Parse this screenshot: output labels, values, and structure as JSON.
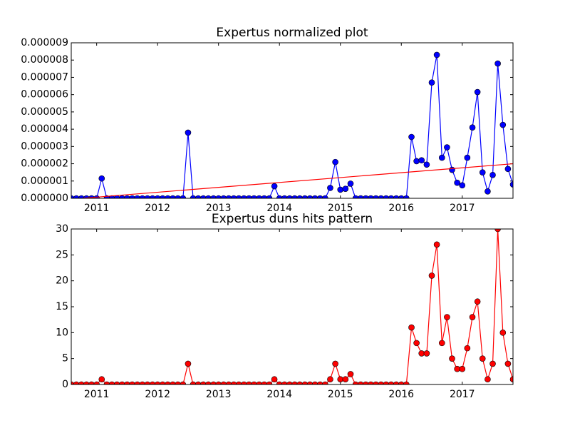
{
  "chart_data": [
    {
      "type": "line",
      "title": "Expertus normalized plot",
      "x": [
        2010.583,
        2010.667,
        2010.75,
        2010.833,
        2010.917,
        2011,
        2011.083,
        2011.167,
        2011.25,
        2011.333,
        2011.417,
        2011.5,
        2011.583,
        2011.667,
        2011.75,
        2011.833,
        2011.917,
        2012,
        2012.083,
        2012.167,
        2012.25,
        2012.333,
        2012.417,
        2012.5,
        2012.583,
        2012.667,
        2012.75,
        2012.833,
        2012.917,
        2013,
        2013.083,
        2013.167,
        2013.25,
        2013.333,
        2013.417,
        2013.5,
        2013.583,
        2013.667,
        2013.75,
        2013.833,
        2013.917,
        2014,
        2014.083,
        2014.167,
        2014.25,
        2014.333,
        2014.417,
        2014.5,
        2014.583,
        2014.667,
        2014.75,
        2014.833,
        2014.917,
        2015,
        2015.083,
        2015.167,
        2015.25,
        2015.333,
        2015.417,
        2015.5,
        2015.583,
        2015.667,
        2015.75,
        2015.833,
        2015.917,
        2016,
        2016.083,
        2016.167,
        2016.25,
        2016.333,
        2016.417,
        2016.5,
        2016.583,
        2016.667,
        2016.75,
        2016.833,
        2016.917,
        2017,
        2017.083,
        2017.167,
        2017.25,
        2017.333,
        2017.417,
        2017.5,
        2017.583,
        2017.667,
        2017.75,
        2017.833
      ],
      "series": [
        {
          "color": "#0000ff",
          "marker": true,
          "values": [
            0,
            0,
            0,
            0,
            0,
            0,
            1.15e-06,
            0,
            0,
            0,
            0,
            0,
            0,
            0,
            0,
            0,
            0,
            0,
            0,
            0,
            0,
            0,
            0,
            3.8e-06,
            0,
            0,
            0,
            0,
            0,
            0,
            0,
            0,
            0,
            0,
            0,
            0,
            0,
            0,
            0,
            0,
            7e-07,
            0,
            0,
            0,
            0,
            0,
            0,
            0,
            0,
            0,
            0,
            6e-07,
            2.1e-06,
            5e-07,
            5.5e-07,
            8.5e-07,
            0,
            0,
            0,
            0,
            0,
            0,
            0,
            0,
            0,
            0,
            0,
            3.55e-06,
            2.15e-06,
            2.2e-06,
            1.95e-06,
            6.7e-06,
            8.3e-06,
            2.35e-06,
            2.95e-06,
            1.65e-06,
            9e-07,
            7.5e-07,
            2.35e-06,
            4.1e-06,
            6.15e-06,
            1.5e-06,
            4e-07,
            1.35e-06,
            7.8e-06,
            4.25e-06,
            1.7e-06,
            8e-07
          ]
        },
        {
          "color": "#ff0000",
          "marker": false,
          "x": [
            2010.583,
            2017.833
          ],
          "values": [
            -5e-08,
            2e-06
          ]
        }
      ],
      "xlim": [
        2010.583,
        2017.833
      ],
      "xticks": [
        2011,
        2012,
        2013,
        2014,
        2015,
        2016,
        2017
      ],
      "ylim": [
        0,
        9e-06
      ],
      "yticks": [
        {
          "value": 0,
          "label": "0.000000"
        },
        {
          "value": 1e-06,
          "label": "0.000001"
        },
        {
          "value": 2e-06,
          "label": "0.000002"
        },
        {
          "value": 3e-06,
          "label": "0.000003"
        },
        {
          "value": 4e-06,
          "label": "0.000004"
        },
        {
          "value": 5e-06,
          "label": "0.000005"
        },
        {
          "value": 6e-06,
          "label": "0.000006"
        },
        {
          "value": 7e-06,
          "label": "0.000007"
        },
        {
          "value": 8e-06,
          "label": "0.000008"
        },
        {
          "value": 9e-06,
          "label": "0.000009"
        }
      ]
    },
    {
      "type": "line",
      "title": "Expertus duns hits pattern",
      "x": [
        2010.583,
        2010.667,
        2010.75,
        2010.833,
        2010.917,
        2011,
        2011.083,
        2011.167,
        2011.25,
        2011.333,
        2011.417,
        2011.5,
        2011.583,
        2011.667,
        2011.75,
        2011.833,
        2011.917,
        2012,
        2012.083,
        2012.167,
        2012.25,
        2012.333,
        2012.417,
        2012.5,
        2012.583,
        2012.667,
        2012.75,
        2012.833,
        2012.917,
        2013,
        2013.083,
        2013.167,
        2013.25,
        2013.333,
        2013.417,
        2013.5,
        2013.583,
        2013.667,
        2013.75,
        2013.833,
        2013.917,
        2014,
        2014.083,
        2014.167,
        2014.25,
        2014.333,
        2014.417,
        2014.5,
        2014.583,
        2014.667,
        2014.75,
        2014.833,
        2014.917,
        2015,
        2015.083,
        2015.167,
        2015.25,
        2015.333,
        2015.417,
        2015.5,
        2015.583,
        2015.667,
        2015.75,
        2015.833,
        2015.917,
        2016,
        2016.083,
        2016.167,
        2016.25,
        2016.333,
        2016.417,
        2016.5,
        2016.583,
        2016.667,
        2016.75,
        2016.833,
        2016.917,
        2017,
        2017.083,
        2017.167,
        2017.25,
        2017.333,
        2017.417,
        2017.5,
        2017.583,
        2017.667,
        2017.75,
        2017.833
      ],
      "series": [
        {
          "color": "#ff0000",
          "marker": true,
          "values": [
            0,
            0,
            0,
            0,
            0,
            0,
            1,
            0,
            0,
            0,
            0,
            0,
            0,
            0,
            0,
            0,
            0,
            0,
            0,
            0,
            0,
            0,
            0,
            4,
            0,
            0,
            0,
            0,
            0,
            0,
            0,
            0,
            0,
            0,
            0,
            0,
            0,
            0,
            0,
            0,
            1,
            0,
            0,
            0,
            0,
            0,
            0,
            0,
            0,
            0,
            0,
            1,
            4,
            1,
            1,
            2,
            0,
            0,
            0,
            0,
            0,
            0,
            0,
            0,
            0,
            0,
            0,
            11,
            8,
            6,
            6,
            21,
            27,
            8,
            13,
            5,
            3,
            3,
            7,
            13,
            16,
            5,
            1,
            4,
            30,
            10,
            4,
            1
          ]
        }
      ],
      "xlim": [
        2010.583,
        2017.833
      ],
      "xticks": [
        2011,
        2012,
        2013,
        2014,
        2015,
        2016,
        2017
      ],
      "ylim": [
        0,
        30
      ],
      "yticks": [
        0,
        5,
        10,
        15,
        20,
        25,
        30
      ]
    }
  ]
}
